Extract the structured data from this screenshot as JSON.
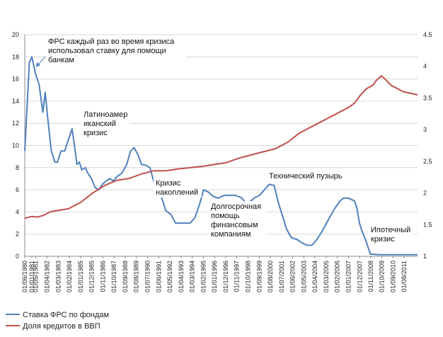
{
  "chart_data": {
    "type": "line",
    "title": "",
    "xlabel": "",
    "ylabel": "",
    "grid": true,
    "legend_position": "bottom-left",
    "y_left": {
      "range": [
        0,
        20
      ],
      "ticks": [
        0,
        2,
        4,
        6,
        8,
        10,
        12,
        14,
        16,
        18,
        20
      ]
    },
    "y_right": {
      "range": [
        1,
        4.5
      ],
      "ticks": [
        "1",
        "1.5",
        "2",
        "2.5",
        "3",
        "3.5",
        "4",
        "4.5"
      ]
    },
    "x_range": [
      1980.42,
      2012.67
    ],
    "x_tick_labels": [
      "01/06/1980",
      "01/01/1981",
      "01/05/1981",
      "01/04/1982",
      "01/03/1983",
      "01/02/1984",
      "01/01/1985",
      "01/12/1985",
      "01/11/1986",
      "01/10/1987",
      "01/09/1988",
      "01/08/1989",
      "01/07/1990",
      "01/06/1991",
      "01/05/1992",
      "01/04/1993",
      "01/03/1994",
      "01/02/1995",
      "01/01/1996",
      "01/12/1996",
      "01/11/1997",
      "01/10/1998",
      "01/09/1999",
      "01/08/2000",
      "01/07/2001",
      "01/06/2002",
      "01/05/2003",
      "01/04/2004",
      "01/03/2005",
      "01/02/2006",
      "01/01/2007",
      "01/12/2007",
      "01/11/2008",
      "01/10/2009",
      "01/09/2010",
      "01/08/2011"
    ],
    "x_tick_positions": [
      1980.42,
      1981.0,
      1981.33,
      1982.25,
      1983.17,
      1984.08,
      1985.0,
      1985.92,
      1986.83,
      1987.75,
      1988.67,
      1989.58,
      1990.5,
      1991.42,
      1992.33,
      1993.25,
      1994.17,
      1995.08,
      1996.0,
      1996.92,
      1997.83,
      1998.75,
      1999.67,
      2000.58,
      2001.5,
      2002.42,
      2003.33,
      2004.25,
      2005.17,
      2006.08,
      2007.0,
      2007.92,
      2008.83,
      2009.75,
      2010.67,
      2011.58
    ],
    "series": [
      {
        "name": "Ставка ФРС по фондам",
        "axis": "left",
        "color": "#4f81bd",
        "x": [
          1980.42,
          1980.8,
          1981.0,
          1981.3,
          1981.6,
          1981.9,
          1982.1,
          1982.3,
          1982.6,
          1982.9,
          1983.1,
          1983.4,
          1983.7,
          1984.0,
          1984.3,
          1984.5,
          1984.7,
          1984.9,
          1985.1,
          1985.4,
          1985.6,
          1985.9,
          1986.2,
          1986.5,
          1986.8,
          1987.1,
          1987.4,
          1987.7,
          1988.0,
          1988.4,
          1988.8,
          1989.1,
          1989.4,
          1989.7,
          1990.0,
          1990.4,
          1990.7,
          1991.0,
          1991.3,
          1991.6,
          1992.0,
          1992.4,
          1992.8,
          1993.2,
          1993.6,
          1994.0,
          1994.4,
          1994.8,
          1995.1,
          1995.5,
          1995.9,
          1996.3,
          1996.8,
          1997.2,
          1997.7,
          1998.2,
          1998.6,
          1999.0,
          1999.3,
          1999.7,
          2000.1,
          2000.5,
          2000.9,
          2001.2,
          2001.6,
          2001.9,
          2002.3,
          2002.8,
          2003.2,
          2003.6,
          2004.0,
          2004.4,
          2004.8,
          2005.3,
          2005.8,
          2006.3,
          2006.6,
          2007.0,
          2007.5,
          2007.7,
          2007.9,
          2008.1,
          2008.4,
          2008.8,
          2009.5,
          2010.5,
          2011.5,
          2012.67
        ],
        "values": [
          9.5,
          17.5,
          18.0,
          16.5,
          15.5,
          13.0,
          14.8,
          12.5,
          9.5,
          8.5,
          8.5,
          9.5,
          9.5,
          10.5,
          11.5,
          10.0,
          8.3,
          8.5,
          7.8,
          8.0,
          7.5,
          7.0,
          6.2,
          6.0,
          6.5,
          6.8,
          7.0,
          6.8,
          7.2,
          7.5,
          8.3,
          9.5,
          9.8,
          9.2,
          8.3,
          8.2,
          8.0,
          6.8,
          6.0,
          5.5,
          4.1,
          3.8,
          3.0,
          3.0,
          3.0,
          3.0,
          3.5,
          4.8,
          6.0,
          5.8,
          5.4,
          5.25,
          5.5,
          5.5,
          5.5,
          5.3,
          4.8,
          5.0,
          5.3,
          5.5,
          6.0,
          6.5,
          6.4,
          5.0,
          3.6,
          2.5,
          1.7,
          1.5,
          1.2,
          1.0,
          1.0,
          1.5,
          2.2,
          3.2,
          4.2,
          5.0,
          5.25,
          5.25,
          5.0,
          4.3,
          3.0,
          2.3,
          1.5,
          0.2,
          0.15,
          0.15,
          0.15,
          0.15
        ]
      },
      {
        "name": "Доля кредитов в ВВП",
        "axis": "right",
        "color": "#c0504d",
        "x": [
          1980.42,
          1981.0,
          1981.5,
          1982.0,
          1982.5,
          1983.0,
          1984.0,
          1985.0,
          1986.0,
          1987.0,
          1988.0,
          1989.0,
          1990.0,
          1991.0,
          1992.0,
          1993.0,
          1994.0,
          1995.0,
          1996.0,
          1997.0,
          1998.0,
          1999.0,
          2000.0,
          2001.0,
          2002.0,
          2003.0,
          2004.0,
          2005.0,
          2006.0,
          2007.0,
          2007.5,
          2008.0,
          2008.5,
          2009.0,
          2009.3,
          2009.7,
          2010.0,
          2010.5,
          2011.0,
          2011.5,
          2012.67
        ],
        "values": [
          1.6,
          1.63,
          1.62,
          1.65,
          1.7,
          1.72,
          1.75,
          1.85,
          2.0,
          2.12,
          2.2,
          2.23,
          2.3,
          2.35,
          2.35,
          2.38,
          2.4,
          2.42,
          2.45,
          2.48,
          2.55,
          2.6,
          2.65,
          2.7,
          2.8,
          2.95,
          3.05,
          3.15,
          3.25,
          3.35,
          3.42,
          3.55,
          3.65,
          3.7,
          3.78,
          3.85,
          3.8,
          3.7,
          3.65,
          3.6,
          3.55
        ]
      }
    ],
    "annotations": [
      {
        "lines": [
          "ФРС каждый раз во время кризиса",
          "использовал ставку для помощи",
          "банкам"
        ]
      },
      {
        "lines": [
          "Латиноамер",
          "иканский",
          "кризис"
        ]
      },
      {
        "lines": [
          "Кризис",
          "накоплений"
        ]
      },
      {
        "lines": [
          "Долгосрочная",
          "помощь",
          "финансовым",
          "компаниям"
        ]
      },
      {
        "lines": [
          "Технический пузырь"
        ]
      },
      {
        "lines": [
          "Ипотечный",
          "кризис"
        ]
      }
    ]
  }
}
